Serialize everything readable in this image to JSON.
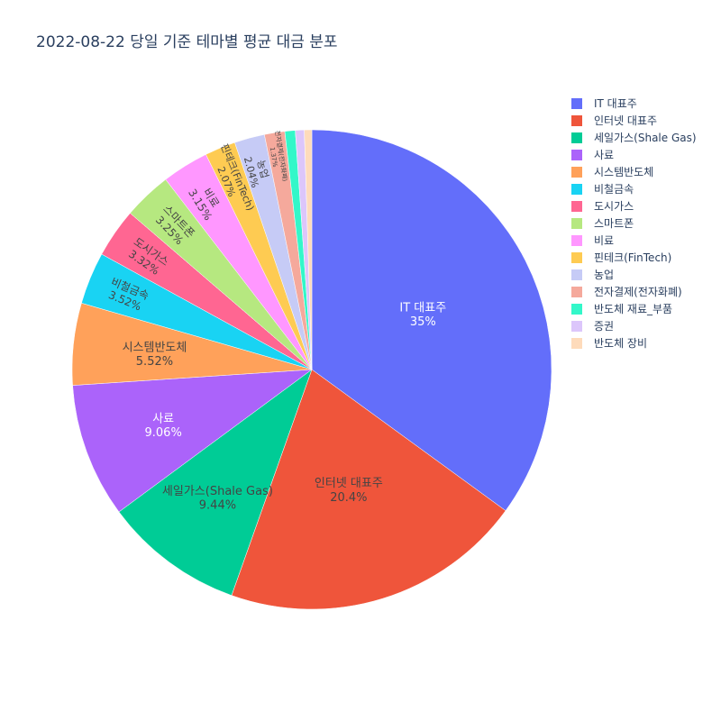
{
  "chart_data": {
    "type": "pie",
    "title": "2022-08-22 당일 기준 테마별 평균 대금 분포",
    "legend_position": "right",
    "sort": "descending",
    "direction": "clockwise",
    "start": "12 o'clock",
    "slices": [
      {
        "name": "IT 대표주",
        "value": 35,
        "label": "35%",
        "color": "#636efa",
        "text_color": "#ffffff"
      },
      {
        "name": "인터넷 대표주",
        "value": 20.4,
        "label": "20.4%",
        "color": "#ef553b",
        "text_color": "#444444"
      },
      {
        "name": "세일가스(Shale Gas)",
        "value": 9.44,
        "label": "9.44%",
        "color": "#00cc96",
        "text_color": "#444444"
      },
      {
        "name": "사료",
        "value": 9.06,
        "label": "9.06%",
        "color": "#ab63fa",
        "text_color": "#ffffff"
      },
      {
        "name": "시스템반도체",
        "value": 5.52,
        "label": "5.52%",
        "color": "#ffa15a",
        "text_color": "#444444"
      },
      {
        "name": "비철금속",
        "value": 3.52,
        "label": "3.52%",
        "color": "#19d3f3",
        "text_color": "#444444"
      },
      {
        "name": "도시가스",
        "value": 3.32,
        "label": "3.32%",
        "color": "#ff6692",
        "text_color": "#444444"
      },
      {
        "name": "스마트폰",
        "value": 3.25,
        "label": "3.25%",
        "color": "#b6e880",
        "text_color": "#444444"
      },
      {
        "name": "비료",
        "value": 3.15,
        "label": "3.15%",
        "color": "#ff97ff",
        "text_color": "#444444"
      },
      {
        "name": "핀테크(FinTech)",
        "value": 2.07,
        "label": "2.07%",
        "color": "#fecb52",
        "text_color": "#444444"
      },
      {
        "name": "농업",
        "value": 2.04,
        "label": "2.04%",
        "color": "#c6cbf6",
        "text_color": "#444444"
      },
      {
        "name": "전자결제(전자화폐)",
        "value": 1.37,
        "label": "1.37%",
        "color": "#f5a99c",
        "text_color": "#444444"
      },
      {
        "name": "반도체 재료_부품",
        "value": 0.7,
        "label": "",
        "color": "#33f7c9",
        "text_color": "#444444"
      },
      {
        "name": "증권",
        "value": 0.6,
        "label": "",
        "color": "#dcc6fb",
        "text_color": "#444444"
      },
      {
        "name": "반도체 장비",
        "value": 0.5,
        "label": "",
        "color": "#fedbbb",
        "text_color": "#444444"
      }
    ]
  }
}
